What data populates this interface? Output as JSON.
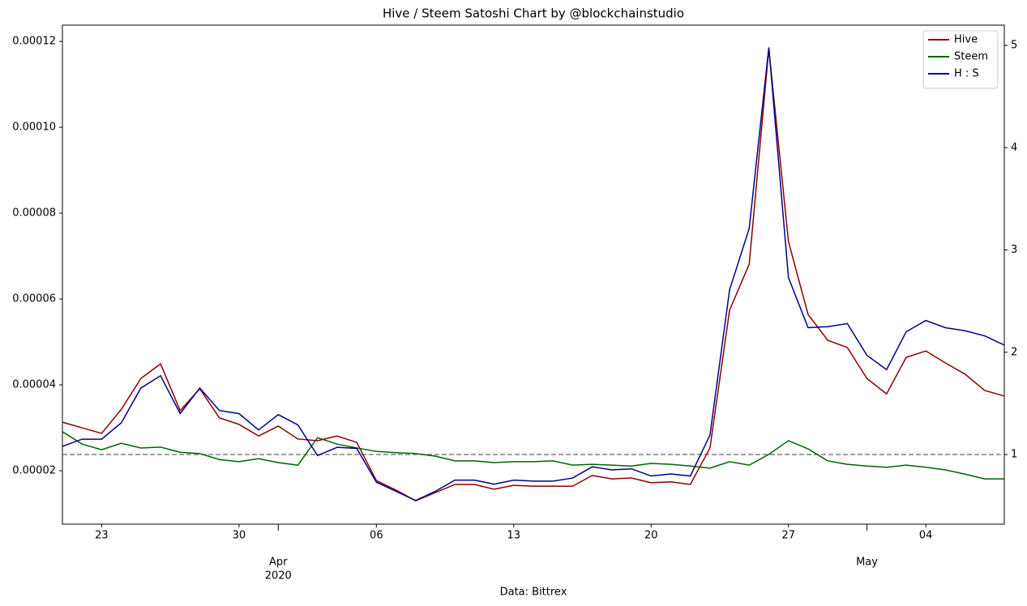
{
  "chart_data": {
    "type": "line",
    "title": "Hive / Steem Satoshi Chart by @blockchainstudio",
    "x_label": "Data: Bittrex",
    "x": [
      "2020-03-21",
      "2020-03-22",
      "2020-03-23",
      "2020-03-24",
      "2020-03-25",
      "2020-03-26",
      "2020-03-27",
      "2020-03-28",
      "2020-03-29",
      "2020-03-30",
      "2020-03-31",
      "2020-04-01",
      "2020-04-02",
      "2020-04-03",
      "2020-04-04",
      "2020-04-05",
      "2020-04-06",
      "2020-04-07",
      "2020-04-08",
      "2020-04-09",
      "2020-04-10",
      "2020-04-11",
      "2020-04-12",
      "2020-04-13",
      "2020-04-14",
      "2020-04-15",
      "2020-04-16",
      "2020-04-17",
      "2020-04-18",
      "2020-04-19",
      "2020-04-20",
      "2020-04-21",
      "2020-04-22",
      "2020-04-23",
      "2020-04-24",
      "2020-04-25",
      "2020-04-26",
      "2020-04-27",
      "2020-04-28",
      "2020-04-29",
      "2020-04-30",
      "2020-05-01",
      "2020-05-02",
      "2020-05-03",
      "2020-05-04",
      "2020-05-05",
      "2020-05-06",
      "2020-05-07",
      "2020-05-08"
    ],
    "xlim": [
      "2020-03-21",
      "2020-05-08"
    ],
    "xticks": [
      {
        "value": "2020-03-23",
        "label": "23"
      },
      {
        "value": "2020-03-30",
        "label": "30"
      },
      {
        "value": "2020-04-06",
        "label": "06"
      },
      {
        "value": "2020-04-13",
        "label": "13"
      },
      {
        "value": "2020-04-20",
        "label": "20"
      },
      {
        "value": "2020-04-27",
        "label": "27"
      },
      {
        "value": "2020-05-04",
        "label": "04"
      }
    ],
    "xticks_major": [
      {
        "value": "2020-04-01",
        "label": "Apr"
      },
      {
        "value": "2020-05-01",
        "label": "May"
      }
    ],
    "year_label": "2020",
    "ylim": [
      7.55e-06,
      0.0001238
    ],
    "yticks": [
      {
        "value": 2e-05,
        "label": "0.00002"
      },
      {
        "value": 4e-05,
        "label": "0.00004"
      },
      {
        "value": 6e-05,
        "label": "0.00006"
      },
      {
        "value": 8e-05,
        "label": "0.00008"
      },
      {
        "value": 0.0001,
        "label": "0.00010"
      },
      {
        "value": 0.00012,
        "label": "0.00012"
      }
    ],
    "y2lim": [
      0.319,
      5.198
    ],
    "y2ticks": [
      1,
      2,
      3,
      4,
      5
    ],
    "reference_line": {
      "axis": "y2",
      "value": 1,
      "color": "#808080",
      "dashed": true
    },
    "legend": "upper right",
    "series": [
      {
        "name": "Hive",
        "color": "#8b0000",
        "values": [
          3.13e-05,
          3e-05,
          2.87e-05,
          3.43e-05,
          4.15e-05,
          4.49e-05,
          3.4e-05,
          3.91e-05,
          3.23e-05,
          3.08e-05,
          2.81e-05,
          3.04e-05,
          2.74e-05,
          2.7e-05,
          2.81e-05,
          2.66e-05,
          1.77e-05,
          1.55e-05,
          1.3e-05,
          1.49e-05,
          1.68e-05,
          1.68e-05,
          1.57e-05,
          1.66e-05,
          1.64e-05,
          1.64e-05,
          1.64e-05,
          1.89e-05,
          1.81e-05,
          1.83e-05,
          1.72e-05,
          1.74e-05,
          1.68e-05,
          2.53e-05,
          5.74e-05,
          6.81e-05,
          0.0001183,
          7.34e-05,
          5.64e-05,
          5.04e-05,
          4.87e-05,
          4.15e-05,
          3.79e-05,
          4.64e-05,
          4.79e-05,
          4.51e-05,
          4.25e-05,
          3.87e-05,
          3.74e-05
        ]
      },
      {
        "name": "Steem",
        "color": "#006400",
        "values": [
          2.91e-05,
          2.62e-05,
          2.49e-05,
          2.64e-05,
          2.53e-05,
          2.55e-05,
          2.43e-05,
          2.4e-05,
          2.26e-05,
          2.21e-05,
          2.28e-05,
          2.19e-05,
          2.13e-05,
          2.77e-05,
          2.62e-05,
          2.53e-05,
          2.45e-05,
          2.42e-05,
          2.4e-05,
          2.34e-05,
          2.23e-05,
          2.23e-05,
          2.19e-05,
          2.21e-05,
          2.21e-05,
          2.23e-05,
          2.13e-05,
          2.15e-05,
          2.13e-05,
          2.11e-05,
          2.17e-05,
          2.15e-05,
          2.11e-05,
          2.06e-05,
          2.21e-05,
          2.13e-05,
          2.38e-05,
          2.7e-05,
          2.51e-05,
          2.23e-05,
          2.15e-05,
          2.11e-05,
          2.08e-05,
          2.13e-05,
          2.08e-05,
          2.02e-05,
          1.92e-05,
          1.81e-05,
          1.81e-05
        ]
      },
      {
        "name": "H : S",
        "color": "#00008b",
        "axis": "y2",
        "values": [
          1.08,
          1.15,
          1.15,
          1.31,
          1.65,
          1.77,
          1.4,
          1.65,
          1.43,
          1.4,
          1.24,
          1.39,
          1.29,
          0.99,
          1.07,
          1.06,
          0.73,
          0.64,
          0.55,
          0.64,
          0.75,
          0.75,
          0.71,
          0.75,
          0.74,
          0.74,
          0.77,
          0.88,
          0.85,
          0.86,
          0.79,
          0.81,
          0.79,
          1.19,
          2.61,
          3.21,
          4.98,
          2.73,
          2.24,
          2.25,
          2.28,
          1.97,
          1.83,
          2.2,
          2.31,
          2.24,
          2.21,
          2.16,
          2.07
        ]
      }
    ]
  }
}
